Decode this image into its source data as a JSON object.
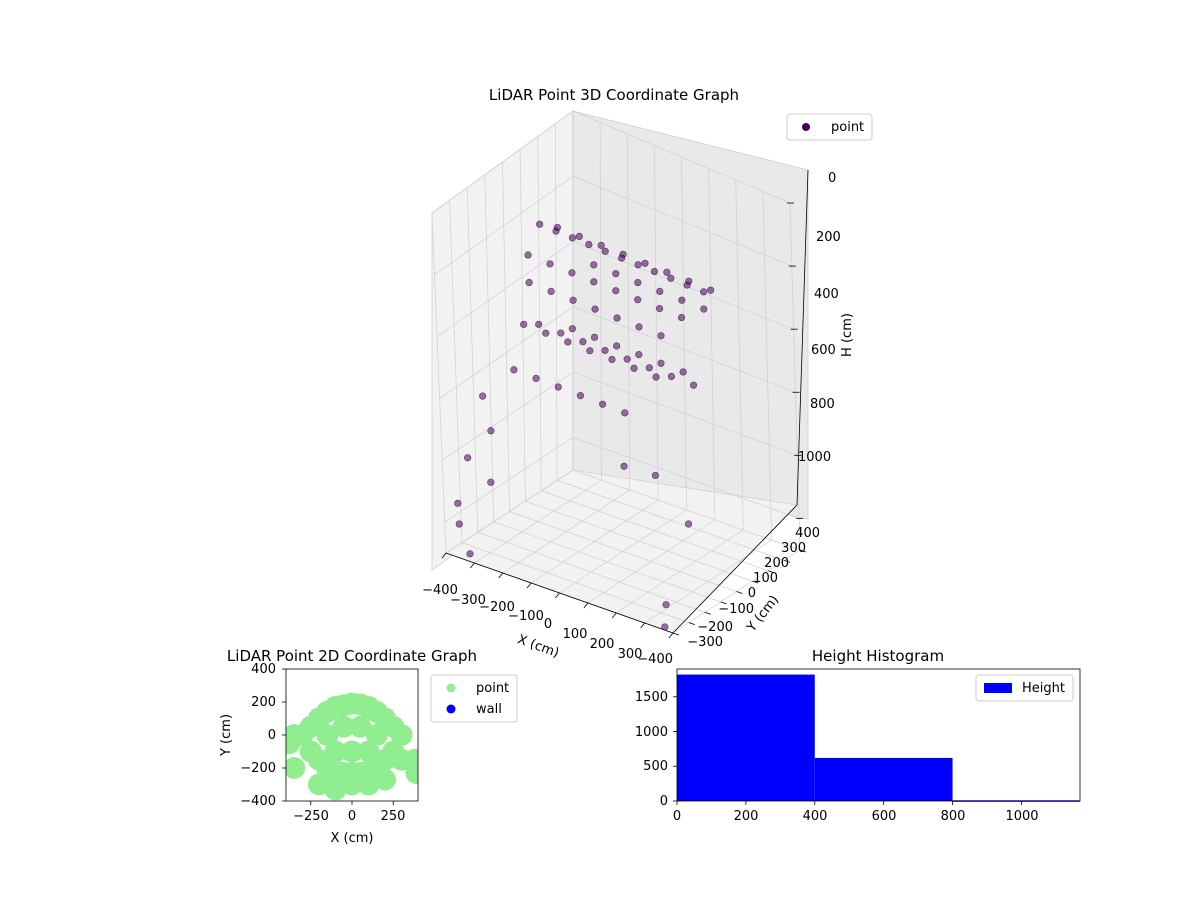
{
  "chart_data": [
    {
      "type": "scatter3d",
      "title": "LiDAR Point 3D Coordinate Graph",
      "xlabel": "X (cm)",
      "ylabel": "Y (cm)",
      "zlabel": "H (cm)",
      "xlim": [
        -400,
        400
      ],
      "ylim": [
        -400,
        400
      ],
      "zlim": [
        0,
        1100
      ],
      "z_inverted": true,
      "xticks": [
        "−400",
        "−300",
        "−200",
        "−100",
        "0",
        "100",
        "200",
        "300"
      ],
      "yticks": [
        "−400",
        "−300",
        "−200",
        "−100",
        "0",
        "100",
        "200",
        "300",
        "400"
      ],
      "zticks": [
        "0",
        "200",
        "400",
        "600",
        "800",
        "1000"
      ],
      "legend": {
        "placement": "top-right",
        "entries": [
          "point"
        ]
      },
      "color": "#440154",
      "grid": true,
      "series": [
        {
          "name": "point",
          "points": [
            [
              -300,
              50,
              180
            ],
            [
              -240,
              50,
              180
            ],
            [
              -180,
              50,
              180
            ],
            [
              -120,
              50,
              180
            ],
            [
              -60,
              50,
              180
            ],
            [
              0,
              50,
              180
            ],
            [
              60,
              50,
              180
            ],
            [
              120,
              50,
              180
            ],
            [
              180,
              50,
              180
            ],
            [
              240,
              50,
              180
            ],
            [
              300,
              50,
              180
            ],
            [
              -280,
              120,
              210
            ],
            [
              -200,
              120,
              210
            ],
            [
              -120,
              120,
              210
            ],
            [
              -40,
              120,
              210
            ],
            [
              40,
              120,
              210
            ],
            [
              120,
              120,
              210
            ],
            [
              200,
              120,
              210
            ],
            [
              280,
              120,
              210
            ],
            [
              -300,
              -20,
              250
            ],
            [
              -220,
              -20,
              250
            ],
            [
              -140,
              -20,
              250
            ],
            [
              -60,
              -20,
              250
            ],
            [
              20,
              -20,
              250
            ],
            [
              100,
              -20,
              250
            ],
            [
              180,
              -20,
              250
            ],
            [
              260,
              -20,
              250
            ],
            [
              -260,
              -80,
              300
            ],
            [
              -180,
              -80,
              300
            ],
            [
              -100,
              -80,
              300
            ],
            [
              -20,
              -80,
              300
            ],
            [
              60,
              -80,
              300
            ],
            [
              140,
              -80,
              300
            ],
            [
              220,
              -80,
              300
            ],
            [
              -200,
              200,
              330
            ],
            [
              -120,
              200,
              330
            ],
            [
              -40,
              200,
              330
            ],
            [
              40,
              200,
              330
            ],
            [
              120,
              200,
              330
            ],
            [
              200,
              200,
              330
            ],
            [
              -240,
              -150,
              400
            ],
            [
              -160,
              -150,
              400
            ],
            [
              -80,
              -150,
              400
            ],
            [
              0,
              -150,
              400
            ],
            [
              80,
              -150,
              400
            ],
            [
              160,
              -150,
              400
            ],
            [
              240,
              -150,
              400
            ],
            [
              -280,
              0,
              470
            ],
            [
              -200,
              0,
              470
            ],
            [
              -120,
              0,
              470
            ],
            [
              -40,
              0,
              470
            ],
            [
              40,
              0,
              470
            ],
            [
              120,
              0,
              470
            ],
            [
              200,
              0,
              470
            ],
            [
              280,
              0,
              470
            ],
            [
              -220,
              100,
              500
            ],
            [
              -140,
              100,
              500
            ],
            [
              -60,
              100,
              500
            ],
            [
              20,
              100,
              500
            ],
            [
              100,
              100,
              500
            ],
            [
              180,
              100,
              500
            ],
            [
              -250,
              -200,
              530
            ],
            [
              -170,
              -200,
              530
            ],
            [
              -90,
              -200,
              530
            ],
            [
              -10,
              -200,
              530
            ],
            [
              70,
              -200,
              530
            ],
            [
              150,
              -200,
              530
            ],
            [
              -330,
              -260,
              620
            ],
            [
              -280,
              -300,
              700
            ],
            [
              -350,
              -330,
              800
            ],
            [
              -300,
              -280,
              880
            ],
            [
              -380,
              -350,
              950
            ],
            [
              -360,
              -380,
              1000
            ],
            [
              200,
              -300,
              650
            ],
            [
              250,
              -200,
              700
            ],
            [
              330,
              -150,
              850
            ],
            [
              340,
              -330,
              1050
            ],
            [
              360,
              -380,
              1100
            ],
            [
              -320,
              -390,
              1080
            ]
          ]
        }
      ]
    },
    {
      "type": "scatter",
      "title": "LiDAR Point 2D Coordinate Graph",
      "xlabel": "X (cm)",
      "ylabel": "Y (cm)",
      "xlim": [
        -400,
        400
      ],
      "ylim": [
        -400,
        400
      ],
      "xticks": [
        "−250",
        "0",
        "250"
      ],
      "yticks": [
        "−400",
        "−200",
        "0",
        "200",
        "400"
      ],
      "legend": {
        "placement": "outside-right",
        "entries": [
          "point",
          "wall"
        ]
      },
      "series": [
        {
          "name": "point",
          "color": "#90ee90",
          "points": [
            [
              -300,
              0
            ],
            [
              -250,
              50
            ],
            [
              -200,
              100
            ],
            [
              -150,
              140
            ],
            [
              -100,
              170
            ],
            [
              -50,
              180
            ],
            [
              0,
              190
            ],
            [
              50,
              185
            ],
            [
              100,
              170
            ],
            [
              150,
              140
            ],
            [
              200,
              100
            ],
            [
              250,
              50
            ],
            [
              300,
              0
            ],
            [
              -250,
              -100
            ],
            [
              -200,
              -150
            ],
            [
              -150,
              -200
            ],
            [
              -100,
              -220
            ],
            [
              -50,
              -230
            ],
            [
              0,
              -230
            ],
            [
              50,
              -230
            ],
            [
              100,
              -220
            ],
            [
              150,
              -200
            ],
            [
              200,
              -150
            ],
            [
              250,
              -100
            ],
            [
              300,
              -150
            ],
            [
              -350,
              -200
            ],
            [
              -380,
              -50
            ],
            [
              -350,
              0
            ],
            [
              380,
              -150
            ],
            [
              390,
              -230
            ],
            [
              -200,
              -300
            ],
            [
              -100,
              -330
            ],
            [
              0,
              -300
            ],
            [
              100,
              -300
            ],
            [
              200,
              -270
            ],
            [
              -150,
              0
            ],
            [
              -50,
              50
            ],
            [
              50,
              50
            ],
            [
              150,
              0
            ],
            [
              -100,
              -100
            ],
            [
              0,
              -100
            ],
            [
              100,
              -100
            ]
          ]
        },
        {
          "name": "wall",
          "color": "#0000ff",
          "points": []
        }
      ]
    },
    {
      "type": "bar",
      "title": "Height Histogram",
      "bins": [
        [
          0,
          400
        ],
        [
          400,
          800
        ],
        [
          800,
          1200
        ]
      ],
      "values": [
        1820,
        620,
        10
      ],
      "xlim": [
        0,
        1170
      ],
      "ylim": [
        0,
        1900
      ],
      "xticks": [
        "0",
        "200",
        "400",
        "600",
        "800",
        "1000"
      ],
      "yticks": [
        "0",
        "500",
        "1000",
        "1500"
      ],
      "legend": {
        "placement": "top-right",
        "entries": [
          "Height"
        ]
      },
      "series": [
        {
          "name": "Height",
          "color": "#0000ff"
        }
      ]
    }
  ]
}
